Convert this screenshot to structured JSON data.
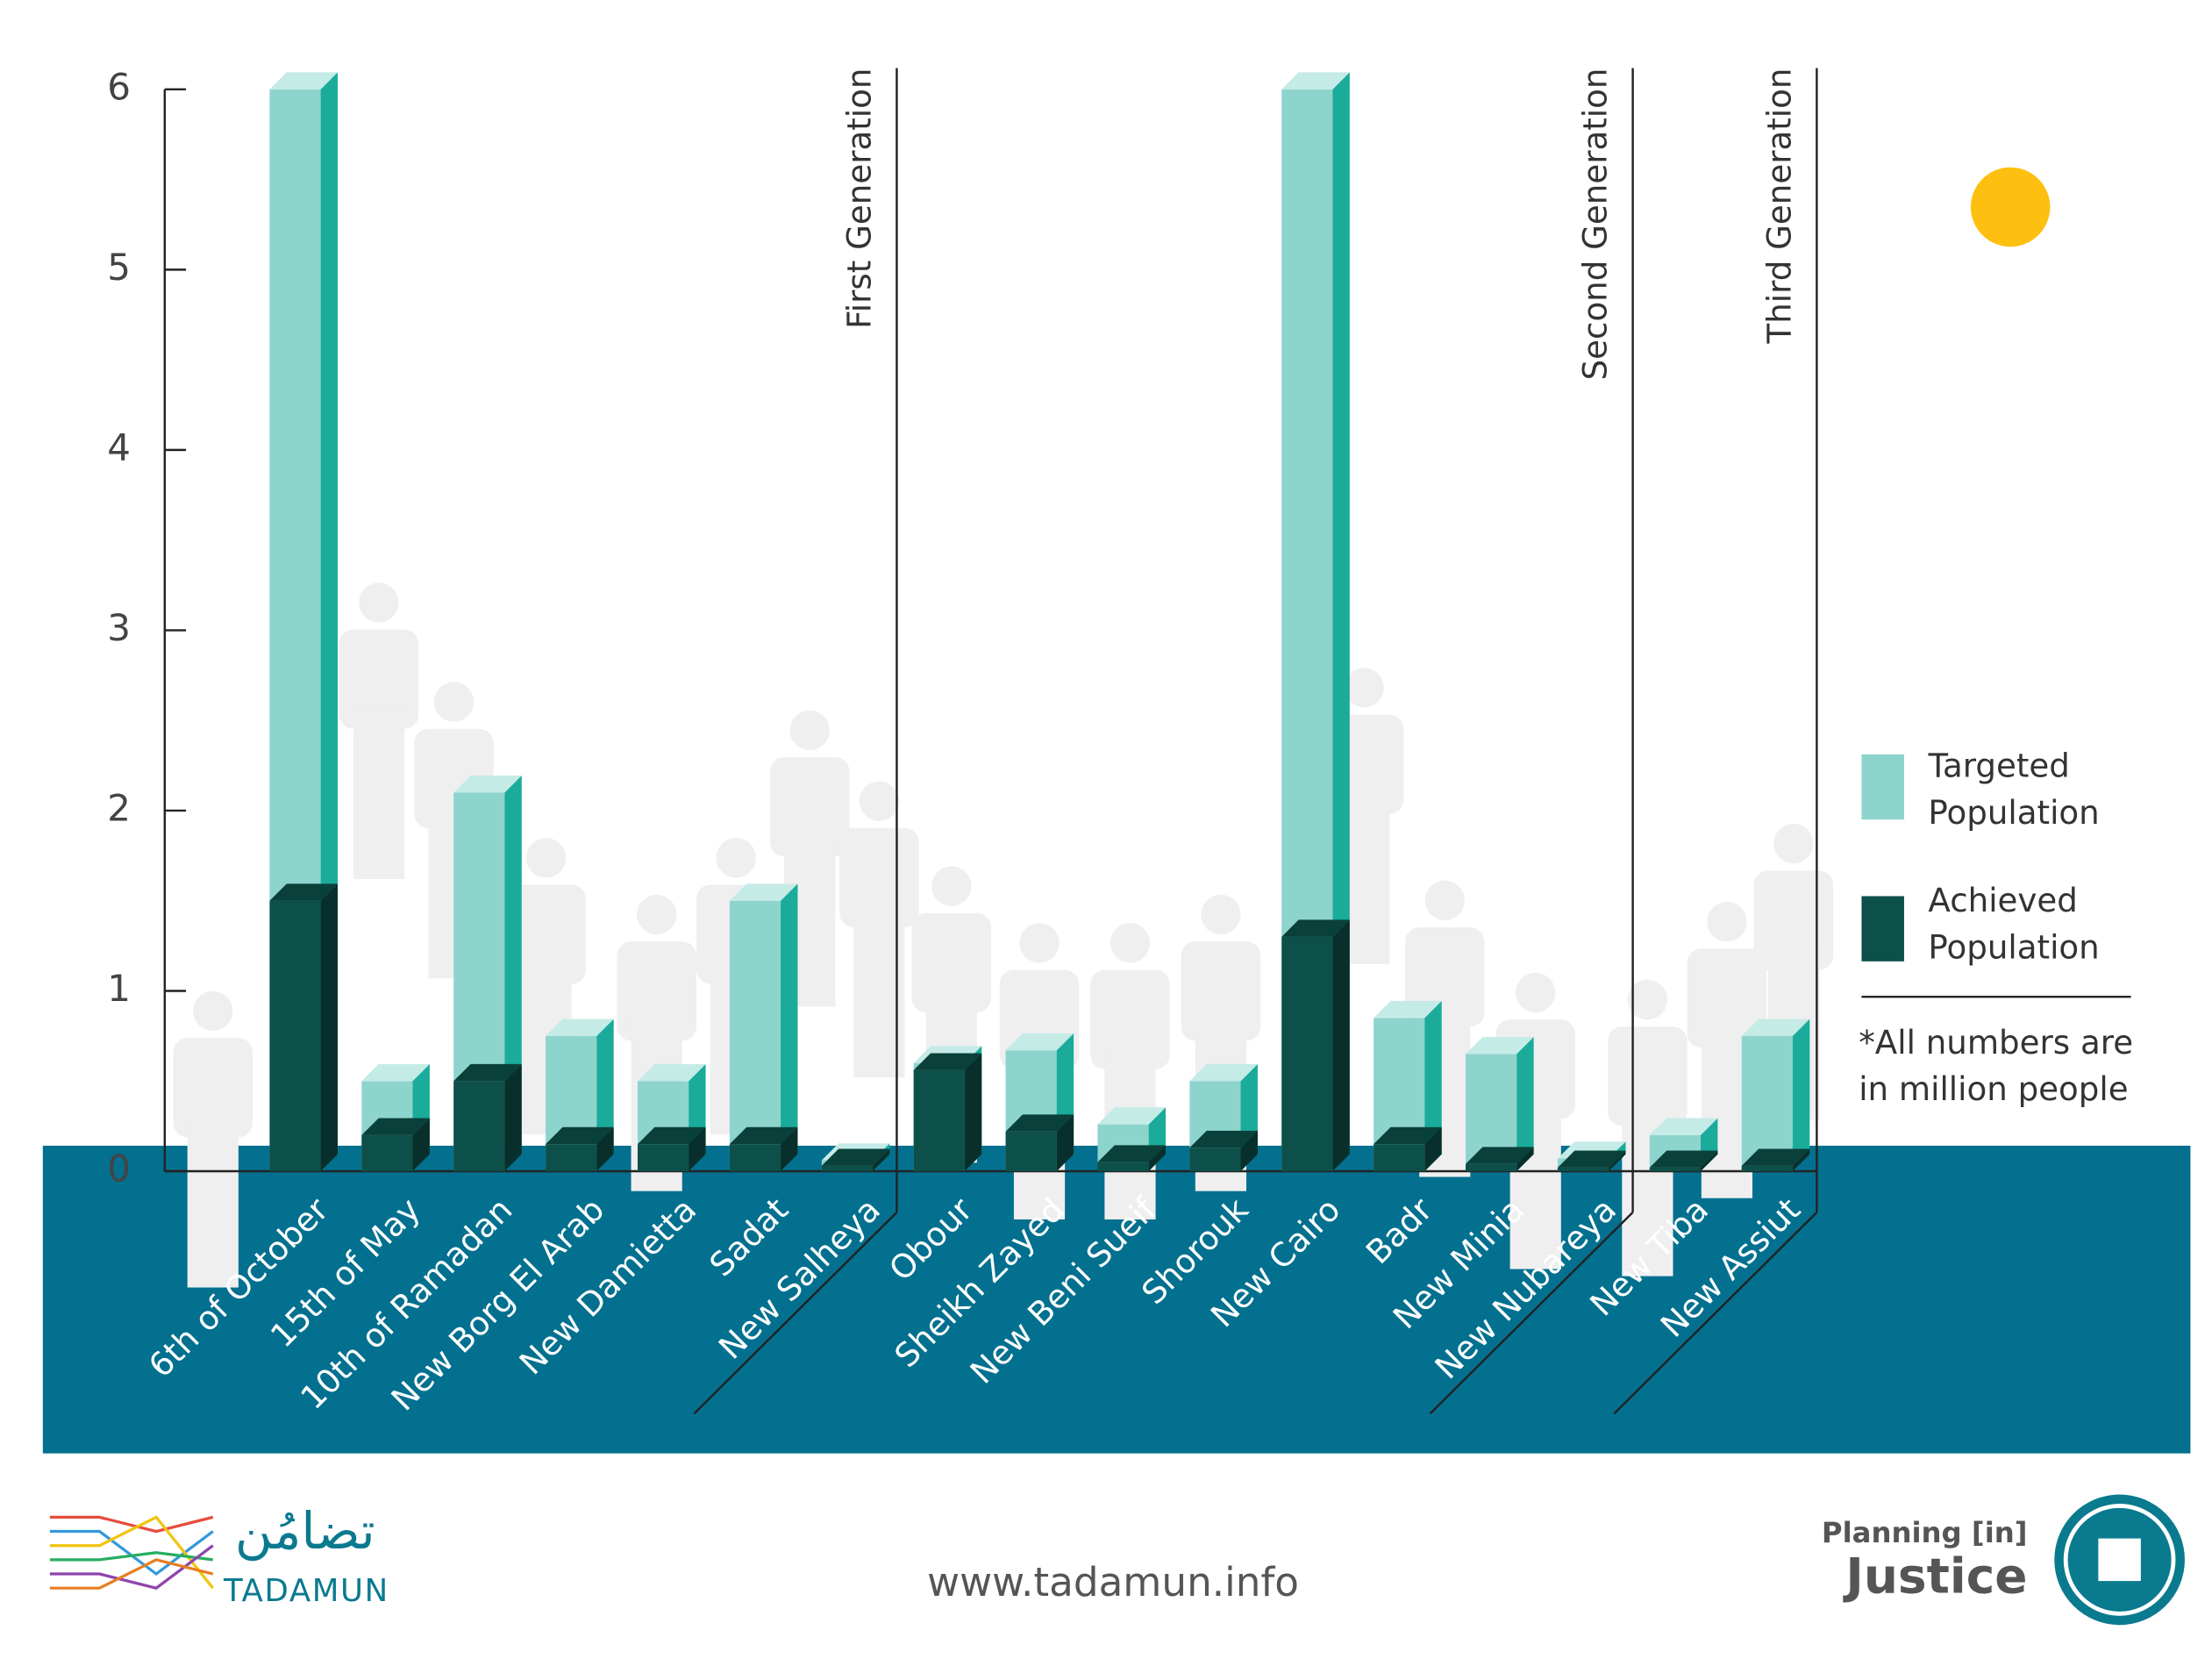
{
  "chart_data": {
    "type": "bar",
    "overlap": true,
    "categories": [
      "6th of October",
      "15th of May",
      "10th of Ramadan",
      "New Borg El Arab",
      "New Damietta",
      "Sadat",
      "New Salheya",
      "Obour",
      "Sheikh Zayed",
      "New Beni Sueif",
      "Shorouk",
      "New Cairo",
      "Badr",
      "New Minia",
      "New Nubareya",
      "New Tiba",
      "New Assiut"
    ],
    "series": [
      {
        "name": "Targeted Population",
        "color": "#8dd4cd",
        "values": [
          6,
          0.5,
          2.1,
          0.75,
          0.5,
          1.5,
          0.06,
          0.6,
          0.67,
          0.26,
          0.5,
          6,
          0.85,
          0.65,
          0.07,
          0.2,
          0.75
        ]
      },
      {
        "name": "Achieved Population",
        "color": "#0d5049",
        "values": [
          1.5,
          0.2,
          0.5,
          0.15,
          0.15,
          0.15,
          0.03,
          0.56,
          0.22,
          0.05,
          0.13,
          1.3,
          0.15,
          0.04,
          0.02,
          0.02,
          0.03
        ]
      }
    ],
    "groups": [
      {
        "label": "First Generation",
        "end": 6
      },
      {
        "label": "Second Generation",
        "end": 14
      },
      {
        "label": "Third Generation",
        "end": 16
      }
    ],
    "ylim": [
      0,
      6
    ],
    "yticks": [
      0,
      1,
      2,
      3,
      4,
      5,
      6
    ],
    "grid": false,
    "note": "*All numbers are in million people"
  },
  "footer": {
    "url": "www.tadamun.info",
    "brand_arabic": "تضامُن",
    "brand": "TADAMUN",
    "partner_top": "Planning [in]",
    "partner_bottom": "Justice"
  }
}
